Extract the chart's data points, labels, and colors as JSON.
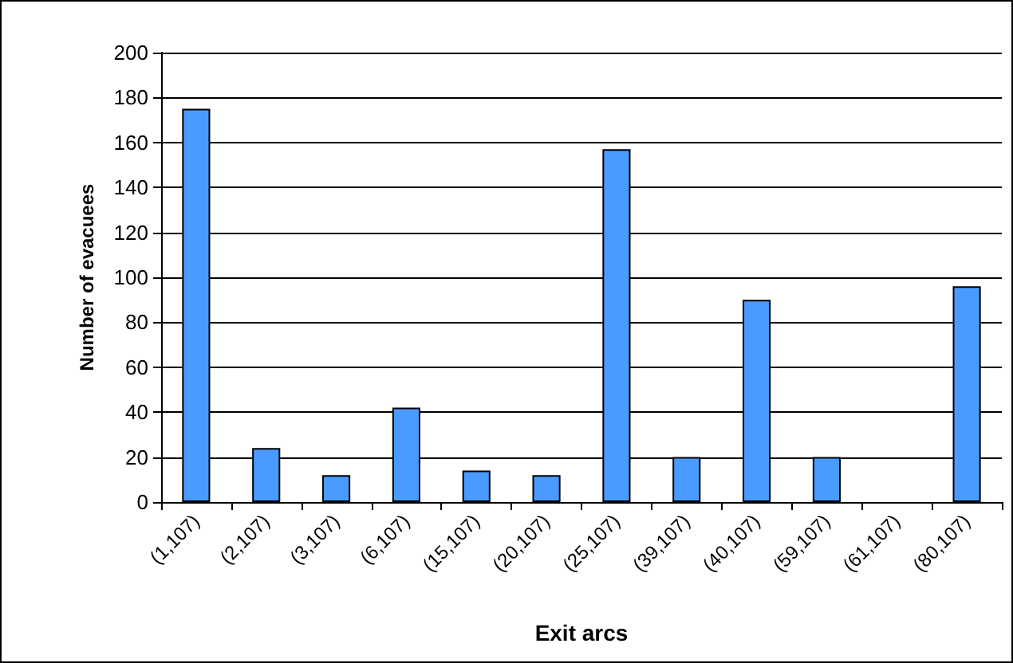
{
  "chart_data": {
    "type": "bar",
    "xlabel": "Exit arcs",
    "ylabel": "Number of evacuees",
    "categories": [
      "(1,107)",
      "(2,107)",
      "(3,107)",
      "(6,107)",
      "(15,107)",
      "(20,107)",
      "(25,107)",
      "(39,107)",
      "(40,107)",
      "(59,107)",
      "(61,107)",
      "(80,107)"
    ],
    "values": [
      175,
      24,
      12,
      42,
      14,
      12,
      157,
      20,
      90,
      20,
      null,
      96
    ],
    "color": "#4a9bff",
    "ylim": [
      0,
      200
    ],
    "yticks": [
      0,
      20,
      40,
      60,
      80,
      100,
      120,
      140,
      160,
      180,
      200
    ],
    "grid": "y"
  }
}
